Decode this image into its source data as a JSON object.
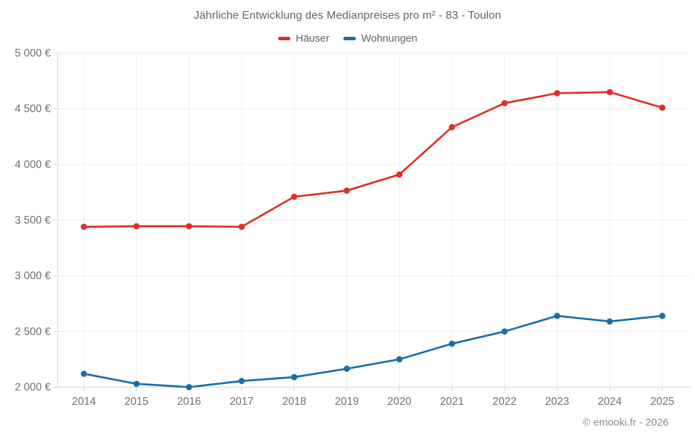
{
  "title": "Jährliche Entwicklung des Medianpreises pro m² - 83 - Toulon",
  "legend": {
    "items": [
      {
        "label": "Häuser",
        "color": "#df2f28"
      },
      {
        "label": "Wohnungen",
        "color": "#1a6fa8"
      }
    ]
  },
  "footer": {
    "credit": "© emooki.fr - 2026"
  },
  "chart_data": {
    "type": "line",
    "title": "Jährliche Entwicklung des Medianpreises pro m² - 83 - Toulon",
    "categories": [
      "2014",
      "2015",
      "2016",
      "2017",
      "2018",
      "2019",
      "2020",
      "2021",
      "2022",
      "2023",
      "2024",
      "2025"
    ],
    "series": [
      {
        "name": "Häuser",
        "color": "#df2f28",
        "values": [
          3440,
          3445,
          3445,
          3440,
          3710,
          3765,
          3910,
          4335,
          4550,
          4640,
          4650,
          4510
        ]
      },
      {
        "name": "Wohnungen",
        "color": "#1a6fa8",
        "values": [
          2120,
          2030,
          2000,
          2055,
          2090,
          2165,
          2250,
          2390,
          2500,
          2640,
          2590,
          2640
        ]
      }
    ],
    "xlabel": "",
    "ylabel": "",
    "ylim": [
      2000,
      5000
    ],
    "ytick_step": 500,
    "ytick_labels": [
      "2 000 €",
      "2 500 €",
      "3 000 €",
      "3 500 €",
      "4 000 €",
      "4 500 €",
      "5 000 €"
    ],
    "grid": true,
    "legend_position": "top",
    "marker": "circle",
    "currency": "€"
  }
}
